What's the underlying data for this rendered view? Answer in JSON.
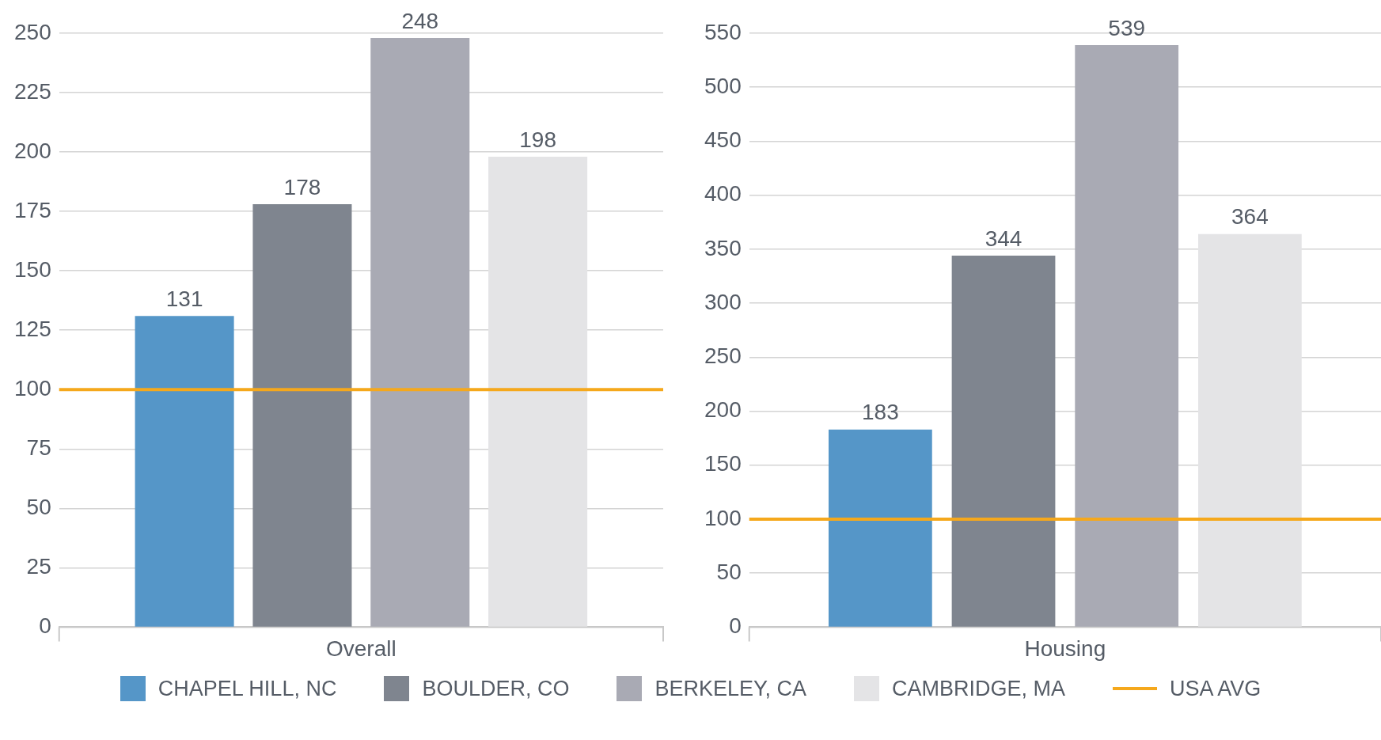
{
  "chart_data": [
    {
      "type": "bar",
      "categories": [
        "Overall"
      ],
      "series": [
        {
          "name": "CHAPEL HILL, NC",
          "color": "#5596c8",
          "values": [
            131
          ]
        },
        {
          "name": "BOULDER, CO",
          "color": "#7f858f",
          "values": [
            178
          ]
        },
        {
          "name": "BERKELEY, CA",
          "color": "#a9aab4",
          "values": [
            248
          ]
        },
        {
          "name": "CAMBRIDGE, MA",
          "color": "#e4e4e6",
          "values": [
            198
          ]
        }
      ],
      "ylim": [
        0,
        250
      ],
      "yticks": [
        0,
        25,
        50,
        75,
        100,
        125,
        150,
        175,
        200,
        225,
        250
      ],
      "grid": "y",
      "data_labels": true,
      "legend": "bottom",
      "ref_lines": [
        {
          "axis": "y",
          "value": 100,
          "label": "USA AVG",
          "color": "#f5a81c"
        }
      ]
    },
    {
      "type": "bar",
      "categories": [
        "Housing"
      ],
      "series": [
        {
          "name": "CHAPEL HILL, NC",
          "color": "#5596c8",
          "values": [
            183
          ]
        },
        {
          "name": "BOULDER, CO",
          "color": "#7f858f",
          "values": [
            344
          ]
        },
        {
          "name": "BERKELEY, CA",
          "color": "#a9aab4",
          "values": [
            539
          ]
        },
        {
          "name": "CAMBRIDGE, MA",
          "color": "#e4e4e6",
          "values": [
            364
          ]
        }
      ],
      "ylim": [
        0,
        550
      ],
      "yticks": [
        0,
        50,
        100,
        150,
        200,
        250,
        300,
        350,
        400,
        450,
        500,
        550
      ],
      "grid": "y",
      "data_labels": true,
      "legend": "bottom",
      "ref_lines": [
        {
          "axis": "y",
          "value": 100,
          "color": "#f5a81c"
        }
      ]
    }
  ]
}
